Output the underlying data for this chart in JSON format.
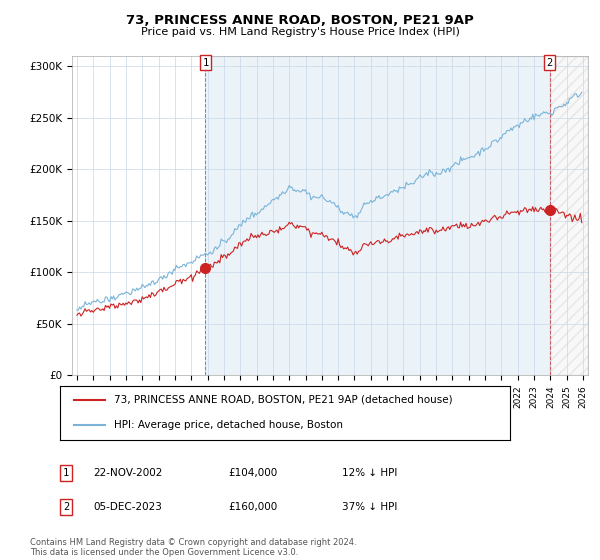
{
  "title": "73, PRINCESS ANNE ROAD, BOSTON, PE21 9AP",
  "subtitle": "Price paid vs. HM Land Registry's House Price Index (HPI)",
  "ylim": [
    0,
    310000
  ],
  "yticks": [
    0,
    50000,
    100000,
    150000,
    200000,
    250000,
    300000
  ],
  "ytick_labels": [
    "£0",
    "£50K",
    "£100K",
    "£150K",
    "£200K",
    "£250K",
    "£300K"
  ],
  "hpi_color": "#7ab4d8",
  "hpi_fill_color": "#daeaf5",
  "price_color": "#cc2222",
  "point1_x": 2002.875,
  "point1_y": 104000,
  "point1_date": "22-NOV-2002",
  "point1_price": 104000,
  "point1_label": "12% ↓ HPI",
  "point2_x": 2023.958,
  "point2_y": 160000,
  "point2_date": "05-DEC-2023",
  "point2_price": 160000,
  "point2_label": "37% ↓ HPI",
  "legend_label1": "73, PRINCESS ANNE ROAD, BOSTON, PE21 9AP (detached house)",
  "legend_label2": "HPI: Average price, detached house, Boston",
  "footnote": "Contains HM Land Registry data © Crown copyright and database right 2024.\nThis data is licensed under the Open Government Licence v3.0.",
  "xmin": 1994.7,
  "xmax": 2026.3,
  "hatch_start": 2024.0,
  "background_color": "#ffffff",
  "grid_color": "#c8d8e8"
}
